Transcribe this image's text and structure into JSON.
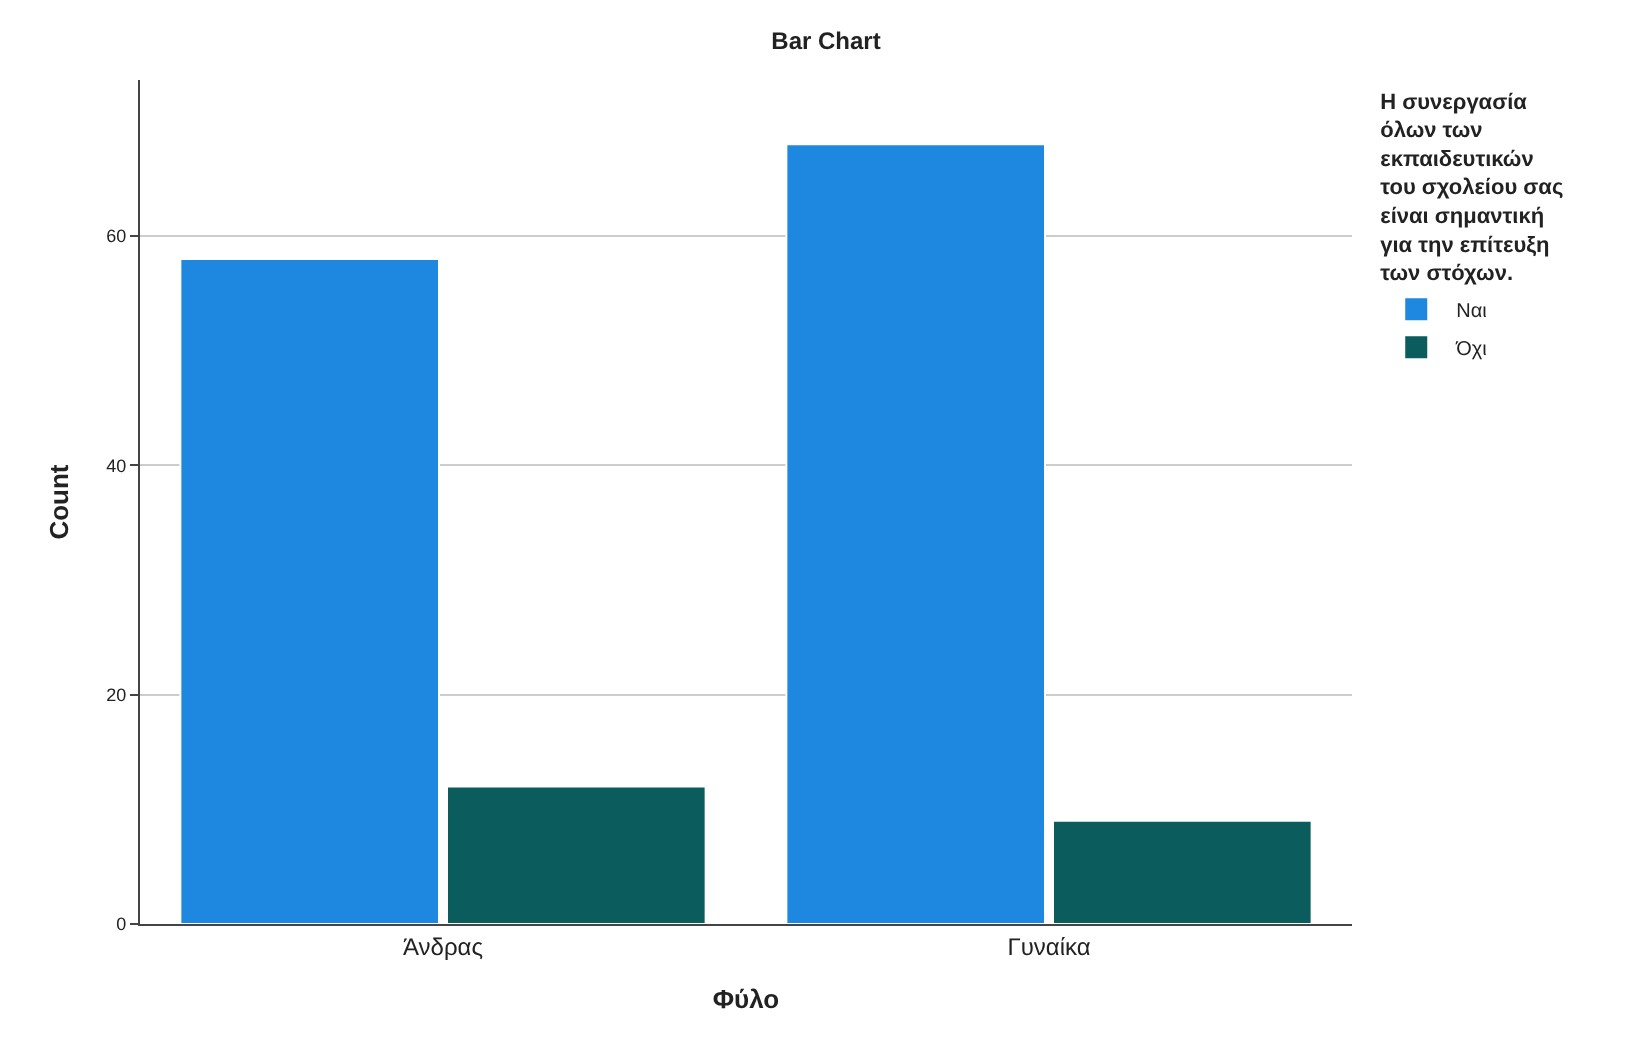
{
  "chart_data": {
    "type": "bar",
    "title": "Bar Chart",
    "xlabel": "Φύλο",
    "ylabel": "Count",
    "legend_title": "Η συνεργασία όλων των εκπαιδευτικών του σχολείου σας είναι σημαντική για την επίτευξη των στόχων.",
    "categories": [
      "Άνδρας",
      "Γυναίκα"
    ],
    "series": [
      {
        "name": "Ναι",
        "color": "#1e88e0",
        "values": [
          58,
          68
        ]
      },
      {
        "name": "Όχι",
        "color": "#0b5c5c",
        "values": [
          12,
          9
        ]
      }
    ],
    "ylim": [
      0,
      73.6
    ],
    "yticks": [
      0,
      20,
      40,
      60
    ],
    "grid": "y",
    "legend": "right"
  }
}
